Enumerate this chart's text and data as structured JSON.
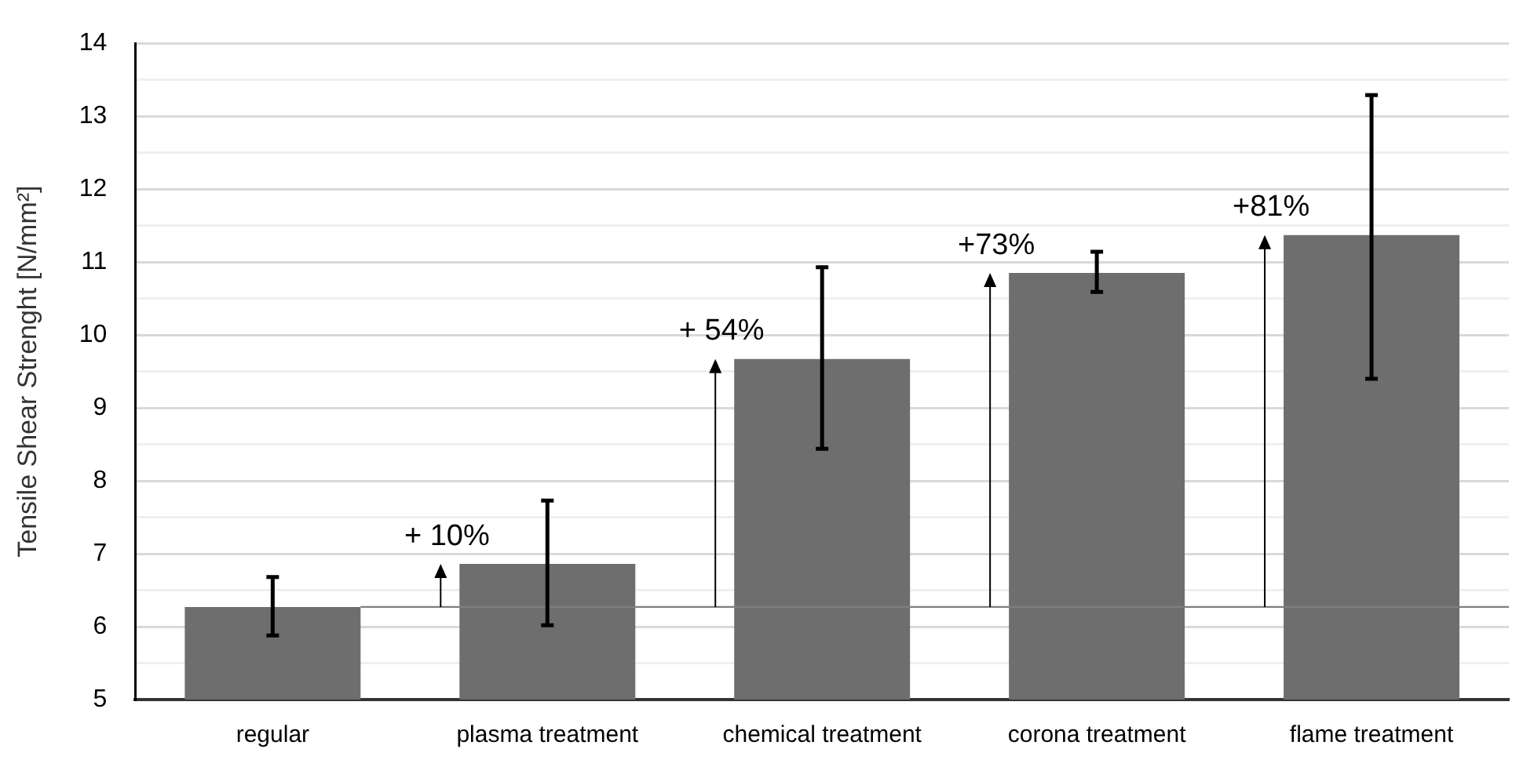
{
  "chart_data": {
    "type": "bar",
    "ylabel": "Tensile Shear Strenght [N/mm²]",
    "categories": [
      "regular",
      "plasma treatment",
      "chemical treatment",
      "corona treatment",
      "flame treatment"
    ],
    "values": [
      6.27,
      6.86,
      9.67,
      10.85,
      11.37
    ],
    "errors": [
      [
        5.88,
        6.68
      ],
      [
        6.02,
        7.73
      ],
      [
        8.44,
        10.93
      ],
      [
        10.59,
        11.14
      ],
      [
        9.4,
        13.29
      ]
    ],
    "color": "#6e6e6e",
    "ylim": [
      5,
      14
    ],
    "yticks": [
      5,
      {
        "value": 5.5,
        "label": null
      },
      6,
      {
        "value": 6.5,
        "label": null
      },
      7,
      {
        "value": 7.5,
        "label": null
      },
      8,
      {
        "value": 8.5,
        "label": null
      },
      9,
      {
        "value": 9.5,
        "label": null
      },
      10,
      {
        "value": 10.5,
        "label": null
      },
      11,
      {
        "value": 11.5,
        "label": null
      },
      12,
      {
        "value": 12.5,
        "label": null
      },
      13,
      {
        "value": 13.5,
        "label": null
      },
      14
    ],
    "grid": "y",
    "ref_lines": [
      {
        "axis": "y",
        "value": 6.27,
        "label": null,
        "color": "#7f7f7f"
      }
    ],
    "annotations": [
      {
        "text": "+ 10%",
        "x": "plasma treatment",
        "y": 6.86
      },
      {
        "text": "+ 54%",
        "x": "chemical treatment",
        "y": 9.67
      },
      {
        "text": "+73%",
        "x": "corona treatment",
        "y": 10.85
      },
      {
        "text": "+81%",
        "x": "flame treatment",
        "y": 11.37
      }
    ]
  }
}
